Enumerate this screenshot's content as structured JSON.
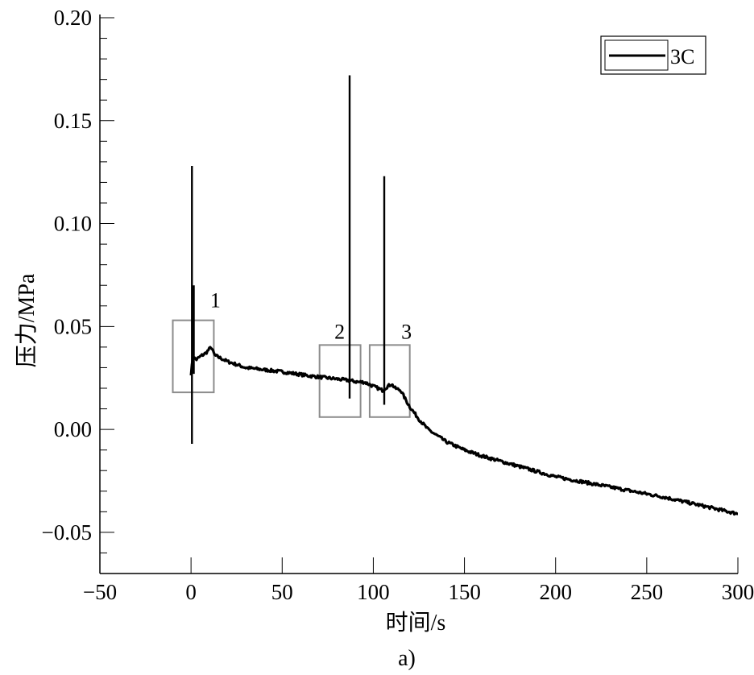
{
  "chart_data": {
    "type": "line",
    "caption": "a)",
    "xlabel": "时间/s",
    "ylabel": "压力/MPa",
    "xlim": [
      -50,
      300
    ],
    "ylim": [
      -0.07,
      0.2
    ],
    "xticks": [
      -50,
      0,
      50,
      100,
      150,
      200,
      250,
      300
    ],
    "xtick_labels": [
      "−50",
      "0",
      "50",
      "100",
      "150",
      "200",
      "250",
      "300"
    ],
    "yticks": [
      -0.05,
      0.0,
      0.05,
      0.1,
      0.15,
      0.2
    ],
    "ytick_labels": [
      "−0.05",
      "0.00",
      "0.05",
      "0.10",
      "0.15",
      "0.20"
    ],
    "grid": false,
    "legend": {
      "placement": "top-right",
      "entries": [
        "3C"
      ]
    },
    "series": [
      {
        "name": "3C",
        "color": "#000000",
        "x": [
          0,
          1,
          3,
          6,
          8,
          10,
          11,
          13,
          20,
          30,
          40,
          50,
          65,
          75,
          85,
          92,
          95,
          100,
          105,
          108,
          110,
          112,
          115,
          118,
          120,
          125,
          130,
          140,
          150,
          160,
          180,
          200,
          230,
          260,
          300
        ],
        "y": [
          0.027,
          0.035,
          0.034,
          0.036,
          0.037,
          0.039,
          0.04,
          0.036,
          0.033,
          0.03,
          0.029,
          0.028,
          0.026,
          0.025,
          0.024,
          0.023,
          0.023,
          0.021,
          0.019,
          0.021,
          0.022,
          0.02,
          0.019,
          0.014,
          0.011,
          0.005,
          0.0,
          -0.006,
          -0.01,
          -0.013,
          -0.018,
          -0.023,
          -0.028,
          -0.033,
          -0.041
        ]
      }
    ],
    "spikes": [
      {
        "x": 0.5,
        "ymin": -0.007,
        "ymax": 0.128
      },
      {
        "x": 1.5,
        "ymin": 0.027,
        "ymax": 0.07
      },
      {
        "x": 87,
        "ymin": 0.015,
        "ymax": 0.172
      },
      {
        "x": 106,
        "ymin": 0.012,
        "ymax": 0.123
      }
    ],
    "annotations": [
      {
        "label": "1",
        "x_range": [
          -10,
          12.5
        ],
        "y_range": [
          0.018,
          0.053
        ]
      },
      {
        "label": "2",
        "x_range": [
          70.5,
          93
        ],
        "y_range": [
          0.006,
          0.041
        ]
      },
      {
        "label": "3",
        "x_range": [
          98,
          120
        ],
        "y_range": [
          0.006,
          0.041
        ]
      }
    ],
    "annotation_color": "#8c8c8c"
  }
}
